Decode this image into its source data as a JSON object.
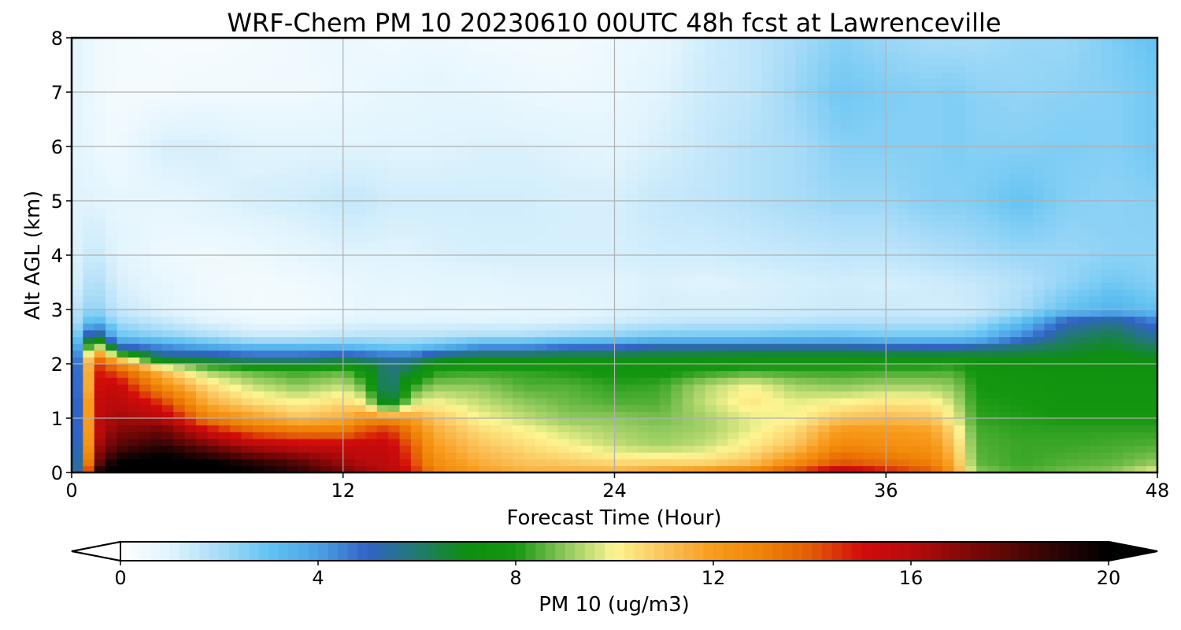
{
  "chart_data": {
    "type": "heatmap",
    "title": "WRF-Chem PM 10  20230610 00UTC 48h fcst at Lawrenceville",
    "xlabel": "Forecast Time (Hour)",
    "ylabel": "Alt AGL (km)",
    "xlim": [
      0,
      48
    ],
    "ylim": [
      0,
      8
    ],
    "x_ticks": [
      "0",
      "12",
      "24",
      "36",
      "48"
    ],
    "y_ticks": [
      "0",
      "1",
      "2",
      "3",
      "4",
      "5",
      "6",
      "7",
      "8"
    ],
    "grid": true,
    "colorbar": {
      "label": "PM 10  (ug/m3)",
      "range": [
        0,
        20
      ],
      "ticks": [
        "0",
        "4",
        "8",
        "12",
        "16",
        "20"
      ],
      "extend": "both",
      "colors": [
        {
          "value": 0,
          "color": "#ffffff"
        },
        {
          "value": 1,
          "color": "#e1f4fd"
        },
        {
          "value": 2,
          "color": "#a9dcf8"
        },
        {
          "value": 3,
          "color": "#62c3f2"
        },
        {
          "value": 4,
          "color": "#4ba2e5"
        },
        {
          "value": 5,
          "color": "#3263c6"
        },
        {
          "value": 6,
          "color": "#217a70"
        },
        {
          "value": 7,
          "color": "#0d8e10"
        },
        {
          "value": 8,
          "color": "#159710"
        },
        {
          "value": 9,
          "color": "#8ec85c"
        },
        {
          "value": 10,
          "color": "#fdf592"
        },
        {
          "value": 11,
          "color": "#fbc35c"
        },
        {
          "value": 12,
          "color": "#f89b1c"
        },
        {
          "value": 13,
          "color": "#ef8206"
        },
        {
          "value": 14,
          "color": "#e35a06"
        },
        {
          "value": 15,
          "color": "#d20b0b"
        },
        {
          "value": 16,
          "color": "#b80b0b"
        },
        {
          "value": 17,
          "color": "#880808"
        },
        {
          "value": 18,
          "color": "#5a0606"
        },
        {
          "value": 19,
          "color": "#2a0404"
        },
        {
          "value": 20,
          "color": "#000000"
        }
      ]
    },
    "field": {
      "description_units": "PM10 concentration (ug/m3) on forecast hour x altitude (km) grid",
      "x_hours": [
        0,
        1,
        2,
        4,
        6,
        8,
        10,
        12,
        13,
        14,
        15,
        16,
        18,
        20,
        22,
        24,
        26,
        28,
        30,
        32,
        34,
        36,
        38,
        39,
        40,
        42,
        44,
        46,
        48
      ],
      "z_km": [
        0,
        0.2,
        0.5,
        0.8,
        1.0,
        1.3,
        1.6,
        1.9,
        2.1,
        2.3,
        2.5,
        2.8,
        3.0,
        3.5,
        4.0,
        5.0,
        6.0,
        7.0,
        8.0
      ],
      "values": [
        [
          1.0,
          1.5,
          1.5,
          1.5,
          1.5,
          1.5,
          1.5,
          1.5,
          1.5,
          1.5,
          1.5,
          1.5,
          1.5,
          1.0,
          1.0,
          1.0,
          1.0,
          1.0,
          1.0
        ],
        [
          19.0,
          17.0,
          16.0,
          15.5,
          15.5,
          15.5,
          15.0,
          15.0,
          14.0,
          11.0,
          7.0,
          3.5,
          2.5,
          2.0,
          1.5,
          1.0,
          0.7,
          0.6,
          0.6
        ],
        [
          21.0,
          20.0,
          18.0,
          17.0,
          16.5,
          16.0,
          15.5,
          14.0,
          11.0,
          5.5,
          3.0,
          2.0,
          1.5,
          1.2,
          1.0,
          0.8,
          0.5,
          0.4,
          0.4
        ],
        [
          21.0,
          20.5,
          19.0,
          17.5,
          16.0,
          14.5,
          12.5,
          11.0,
          6.0,
          4.5,
          2.5,
          1.5,
          1.0,
          0.8,
          0.6,
          0.8,
          1.2,
          0.4,
          0.3
        ],
        [
          20.5,
          20.0,
          17.5,
          15.0,
          13.0,
          11.5,
          10.5,
          9.0,
          6.0,
          4.0,
          2.0,
          1.0,
          0.6,
          0.5,
          0.5,
          1.0,
          1.2,
          0.5,
          0.3
        ],
        [
          20.0,
          19.0,
          16.0,
          13.5,
          12.0,
          10.5,
          9.5,
          8.5,
          5.5,
          3.5,
          1.5,
          0.7,
          0.4,
          0.4,
          0.6,
          1.2,
          1.0,
          0.5,
          0.4
        ],
        [
          19.0,
          18.0,
          15.5,
          13.0,
          11.0,
          10.0,
          9.0,
          8.2,
          5.5,
          3.5,
          1.5,
          0.7,
          0.4,
          0.5,
          0.8,
          1.3,
          1.0,
          0.5,
          0.5
        ],
        [
          17.5,
          16.5,
          15.5,
          13.0,
          11.5,
          10.5,
          9.5,
          8.5,
          6.0,
          3.5,
          1.7,
          0.9,
          0.6,
          0.7,
          1.0,
          1.5,
          1.0,
          0.6,
          0.7
        ],
        [
          16.5,
          16.0,
          15.5,
          14.0,
          12.5,
          10.0,
          8.5,
          7.5,
          5.8,
          3.3,
          1.8,
          1.0,
          0.8,
          0.8,
          1.0,
          1.5,
          1.0,
          0.7,
          0.6
        ],
        [
          16.0,
          15.8,
          15.5,
          14.5,
          12.5,
          6.0,
          5.5,
          5.8,
          5.5,
          3.0,
          1.8,
          1.0,
          0.7,
          0.9,
          1.0,
          1.3,
          1.0,
          0.8,
          0.5
        ],
        [
          15.0,
          14.5,
          14.0,
          13.0,
          12.0,
          9.5,
          8.0,
          6.5,
          5.5,
          3.0,
          1.8,
          1.0,
          0.7,
          0.8,
          1.0,
          1.3,
          1.0,
          0.8,
          0.6
        ],
        [
          13.0,
          12.5,
          12.0,
          11.5,
          11.0,
          10.0,
          9.0,
          8.0,
          6.5,
          3.5,
          1.8,
          1.0,
          0.8,
          0.9,
          1.1,
          1.3,
          1.0,
          0.9,
          0.6
        ],
        [
          12.0,
          11.5,
          11.0,
          10.5,
          10.0,
          9.5,
          9.0,
          8.2,
          7.0,
          4.5,
          2.0,
          1.0,
          0.7,
          0.9,
          1.2,
          1.3,
          1.1,
          0.8,
          0.5
        ],
        [
          11.5,
          11.0,
          10.5,
          10.0,
          9.5,
          9.0,
          8.5,
          8.2,
          7.0,
          4.5,
          2.0,
          1.0,
          0.8,
          1.0,
          1.2,
          1.3,
          1.1,
          0.7,
          0.4
        ],
        [
          11.5,
          10.8,
          10.0,
          9.5,
          9.0,
          8.7,
          8.5,
          8.0,
          7.2,
          5.0,
          2.3,
          1.1,
          0.8,
          1.0,
          1.2,
          1.2,
          1.0,
          0.6,
          0.4
        ],
        [
          11.5,
          10.5,
          9.5,
          9.2,
          9.0,
          8.5,
          8.2,
          7.8,
          7.2,
          5.0,
          2.5,
          1.3,
          1.0,
          1.0,
          1.2,
          1.2,
          0.9,
          0.7,
          0.6
        ],
        [
          12.0,
          10.5,
          9.2,
          9.0,
          8.8,
          8.5,
          8.3,
          7.8,
          7.2,
          5.5,
          2.8,
          1.5,
          1.2,
          1.1,
          1.3,
          1.5,
          1.2,
          1.0,
          0.8
        ],
        [
          12.5,
          10.5,
          9.5,
          9.2,
          9.2,
          9.5,
          9.3,
          8.0,
          7.3,
          5.5,
          2.8,
          1.6,
          1.2,
          1.0,
          1.3,
          1.6,
          1.5,
          1.4,
          1.3
        ],
        [
          13.0,
          11.0,
          10.2,
          9.8,
          9.8,
          10.3,
          10.0,
          8.2,
          7.5,
          5.5,
          2.8,
          1.6,
          1.2,
          1.1,
          1.4,
          1.8,
          1.8,
          1.6,
          1.6
        ],
        [
          14.5,
          12.5,
          11.0,
          10.5,
          10.0,
          9.8,
          9.2,
          8.2,
          7.5,
          5.5,
          3.0,
          1.7,
          1.3,
          1.2,
          1.5,
          2.0,
          2.0,
          2.2,
          2.0
        ],
        [
          16.0,
          14.0,
          12.8,
          12.0,
          11.0,
          10.0,
          9.0,
          8.2,
          7.5,
          5.5,
          3.0,
          1.8,
          1.4,
          1.3,
          1.6,
          2.2,
          2.5,
          2.8,
          2.5
        ],
        [
          15.0,
          13.5,
          12.5,
          12.0,
          11.2,
          10.3,
          9.2,
          8.3,
          7.5,
          5.3,
          2.8,
          1.8,
          1.4,
          1.2,
          1.6,
          2.2,
          2.5,
          2.6,
          2.2
        ],
        [
          14.0,
          13.0,
          12.3,
          11.8,
          11.0,
          10.2,
          9.2,
          8.3,
          7.5,
          5.2,
          2.8,
          1.8,
          1.3,
          1.3,
          1.8,
          2.5,
          2.5,
          2.5,
          2.0
        ],
        [
          12.0,
          11.5,
          11.0,
          10.5,
          10.0,
          9.5,
          9.0,
          8.4,
          7.6,
          5.2,
          2.8,
          1.8,
          1.3,
          1.4,
          1.9,
          2.5,
          2.6,
          2.6,
          2.0
        ],
        [
          9.0,
          8.6,
          8.5,
          8.4,
          8.2,
          8.1,
          8.0,
          7.8,
          7.2,
          5.5,
          3.0,
          2.0,
          1.4,
          1.5,
          2.0,
          2.6,
          2.5,
          2.4,
          2.0
        ],
        [
          8.5,
          8.3,
          8.3,
          8.2,
          8.1,
          8.0,
          7.8,
          7.6,
          7.0,
          6.0,
          4.5,
          3.0,
          2.0,
          1.8,
          2.2,
          3.0,
          2.5,
          2.3,
          2.2
        ],
        [
          8.8,
          8.5,
          8.3,
          8.2,
          8.0,
          7.8,
          7.6,
          7.4,
          7.0,
          6.5,
          6.0,
          5.0,
          3.0,
          2.3,
          2.2,
          2.5,
          2.6,
          2.4,
          2.2
        ],
        [
          9.0,
          8.6,
          8.4,
          8.2,
          8.0,
          7.8,
          7.6,
          7.4,
          7.2,
          6.8,
          6.5,
          5.5,
          3.5,
          2.8,
          2.4,
          2.4,
          2.5,
          2.5,
          2.6
        ],
        [
          10.0,
          9.0,
          8.5,
          8.2,
          8.0,
          7.8,
          7.6,
          7.4,
          7.0,
          6.2,
          5.5,
          4.5,
          3.0,
          2.5,
          2.4,
          2.5,
          2.8,
          2.8,
          3.0
        ]
      ]
    }
  }
}
